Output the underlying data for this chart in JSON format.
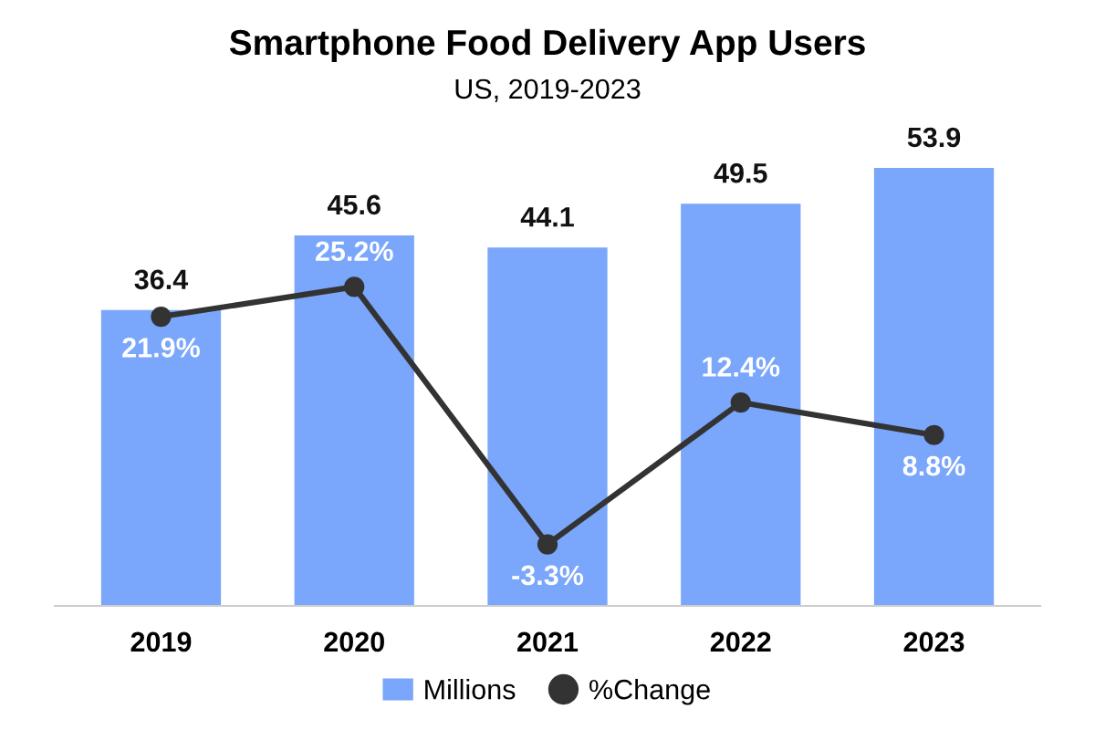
{
  "chart_data": {
    "type": "bar",
    "title": "Smartphone Food Delivery App Users",
    "subtitle": "US, 2019-2023",
    "categories": [
      "2019",
      "2020",
      "2021",
      "2022",
      "2023"
    ],
    "series": [
      {
        "name": "Millions",
        "color": "#7aa6fb",
        "values": [
          36.4,
          45.6,
          44.1,
          49.5,
          53.9
        ],
        "value_labels": [
          "36.4",
          "45.6",
          "44.1",
          "49.5",
          "53.9"
        ]
      },
      {
        "name": "%Change",
        "type": "line",
        "axis": "y2",
        "color": "#333333",
        "marker": "circle",
        "values": [
          21.9,
          25.2,
          -3.3,
          12.4,
          8.8
        ],
        "value_labels": [
          "21.9%",
          "25.2%",
          "-3.3%",
          "12.4%",
          "8.8%"
        ]
      }
    ],
    "legend": "bottom",
    "grid": false
  }
}
